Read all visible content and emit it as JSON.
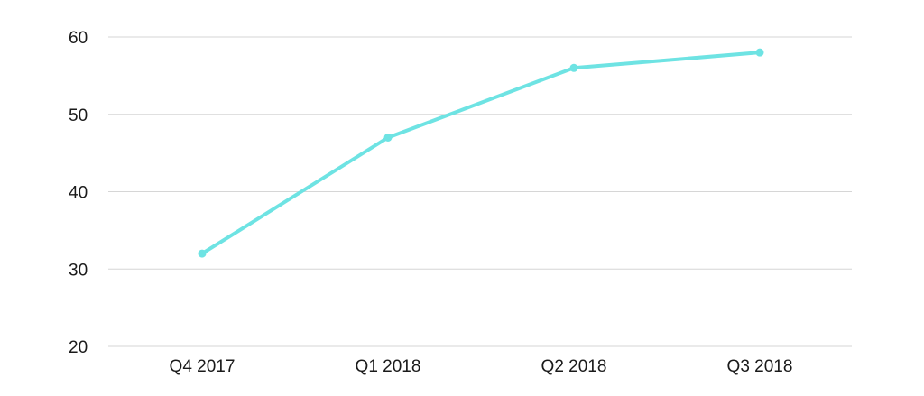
{
  "chart_data": {
    "type": "line",
    "categories": [
      "Q4 2017",
      "Q1 2018",
      "Q2 2018",
      "Q3 2018"
    ],
    "series": [
      {
        "values": [
          32,
          47,
          56,
          58
        ],
        "color": "#6ee3e3"
      }
    ],
    "ylim": [
      20,
      60
    ],
    "yticks": [
      20,
      30,
      40,
      50,
      60
    ],
    "grid": true,
    "title": "",
    "xlabel": "",
    "ylabel": ""
  }
}
